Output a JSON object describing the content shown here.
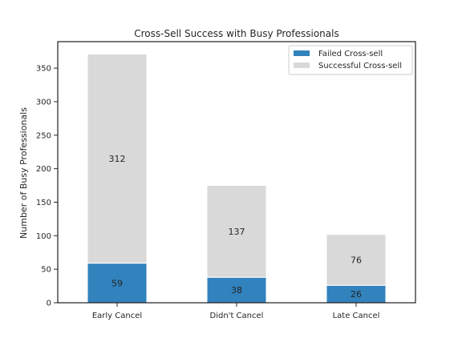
{
  "chart_data": {
    "type": "bar",
    "stacked": true,
    "title": "Cross-Sell Success with Busy Professionals",
    "xlabel": "",
    "ylabel": "Number of Busy Professionals",
    "categories": [
      "Early Cancel",
      "Didn't Cancel",
      "Late Cancel"
    ],
    "series": [
      {
        "name": "Failed Cross-sell",
        "values": [
          59,
          38,
          26
        ],
        "color": "#3182bd"
      },
      {
        "name": "Successful Cross-sell",
        "values": [
          312,
          137,
          76
        ],
        "color": "#d9d9d9"
      }
    ],
    "yticks": [
      0,
      50,
      100,
      150,
      200,
      250,
      300,
      350
    ],
    "ylim": [
      0,
      389.55
    ],
    "grid": false,
    "legend_position": "top-right"
  }
}
